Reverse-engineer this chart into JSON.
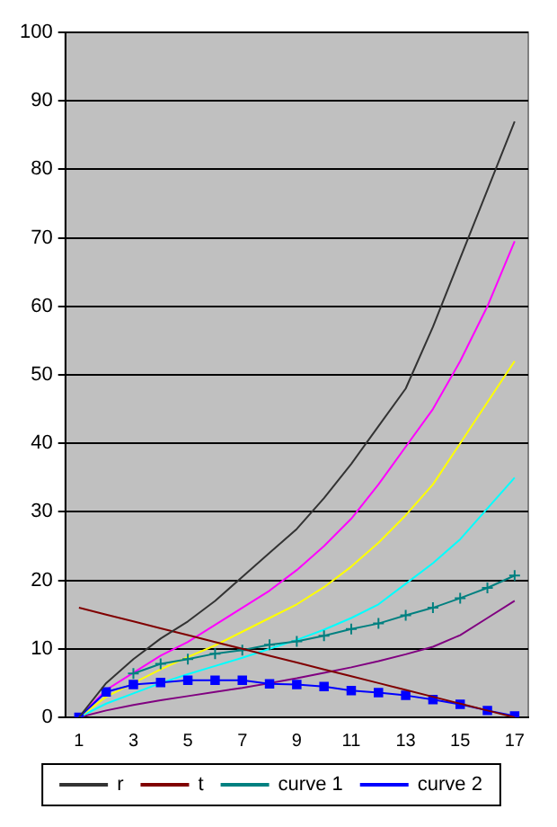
{
  "chart_data": {
    "type": "line",
    "x": [
      1,
      2,
      3,
      4,
      5,
      6,
      7,
      8,
      9,
      10,
      11,
      12,
      13,
      14,
      15,
      16,
      17
    ],
    "xlim": [
      0.5,
      17.5
    ],
    "xticks": [
      1,
      3,
      5,
      7,
      9,
      11,
      13,
      15,
      17
    ],
    "ylim": [
      0,
      100
    ],
    "yticks": [
      0,
      10,
      20,
      30,
      40,
      50,
      60,
      70,
      80,
      90,
      100
    ],
    "grid": "y",
    "legend": "bottom",
    "marker": "none",
    "line_style": "solid",
    "series": [
      {
        "name": "r",
        "color": "#333333",
        "values": [
          0,
          5,
          8.5,
          11.5,
          14,
          17,
          20.5,
          24,
          27.5,
          32,
          37,
          42.5,
          48,
          57,
          67,
          77,
          87
        ]
      },
      {
        "name": "t",
        "color": "#800000",
        "values": [
          16,
          15,
          14,
          13,
          12,
          11,
          10,
          9,
          8,
          7,
          6,
          5,
          4,
          3,
          2,
          1,
          0
        ]
      },
      {
        "name": "curve 1",
        "color": "#008080",
        "marker": "cross",
        "values": [
          null,
          null,
          6.4,
          7.8,
          8.5,
          9.3,
          9.8,
          10.6,
          11.1,
          11.9,
          12.9,
          13.7,
          14.9,
          16,
          17.4,
          18.9,
          20.7
        ]
      },
      {
        "name": "curve 2",
        "color": "#0000ff",
        "marker": "square",
        "values": [
          0,
          3.7,
          4.8,
          5.1,
          5.4,
          5.4,
          5.4,
          4.9,
          4.8,
          4.5,
          3.9,
          3.6,
          3.2,
          2.6,
          1.9,
          1,
          0.2
        ]
      },
      {
        "color": "#ff00ff",
        "values": [
          0,
          4,
          6.5,
          9,
          11,
          13.5,
          16,
          18.5,
          21.5,
          25,
          29,
          34,
          39.5,
          45,
          52,
          60,
          69.5
        ]
      },
      {
        "color": "#ffff00",
        "values": [
          0,
          3,
          5,
          7,
          8.8,
          10.5,
          12.5,
          14.5,
          16.5,
          19,
          22,
          25.5,
          29.5,
          34,
          40,
          46,
          52
        ]
      },
      {
        "color": "#00ffff",
        "values": [
          0,
          2,
          3.5,
          5,
          6.3,
          7.5,
          8.7,
          10,
          11.3,
          12.8,
          14.5,
          16.5,
          19.5,
          22.5,
          26,
          30.5,
          35
        ]
      },
      {
        "color": "#800080",
        "values": [
          0,
          1,
          1.8,
          2.5,
          3.1,
          3.7,
          4.3,
          5,
          5.7,
          6.5,
          7.3,
          8.2,
          9.2,
          10.3,
          12,
          14.5,
          17
        ]
      }
    ]
  }
}
